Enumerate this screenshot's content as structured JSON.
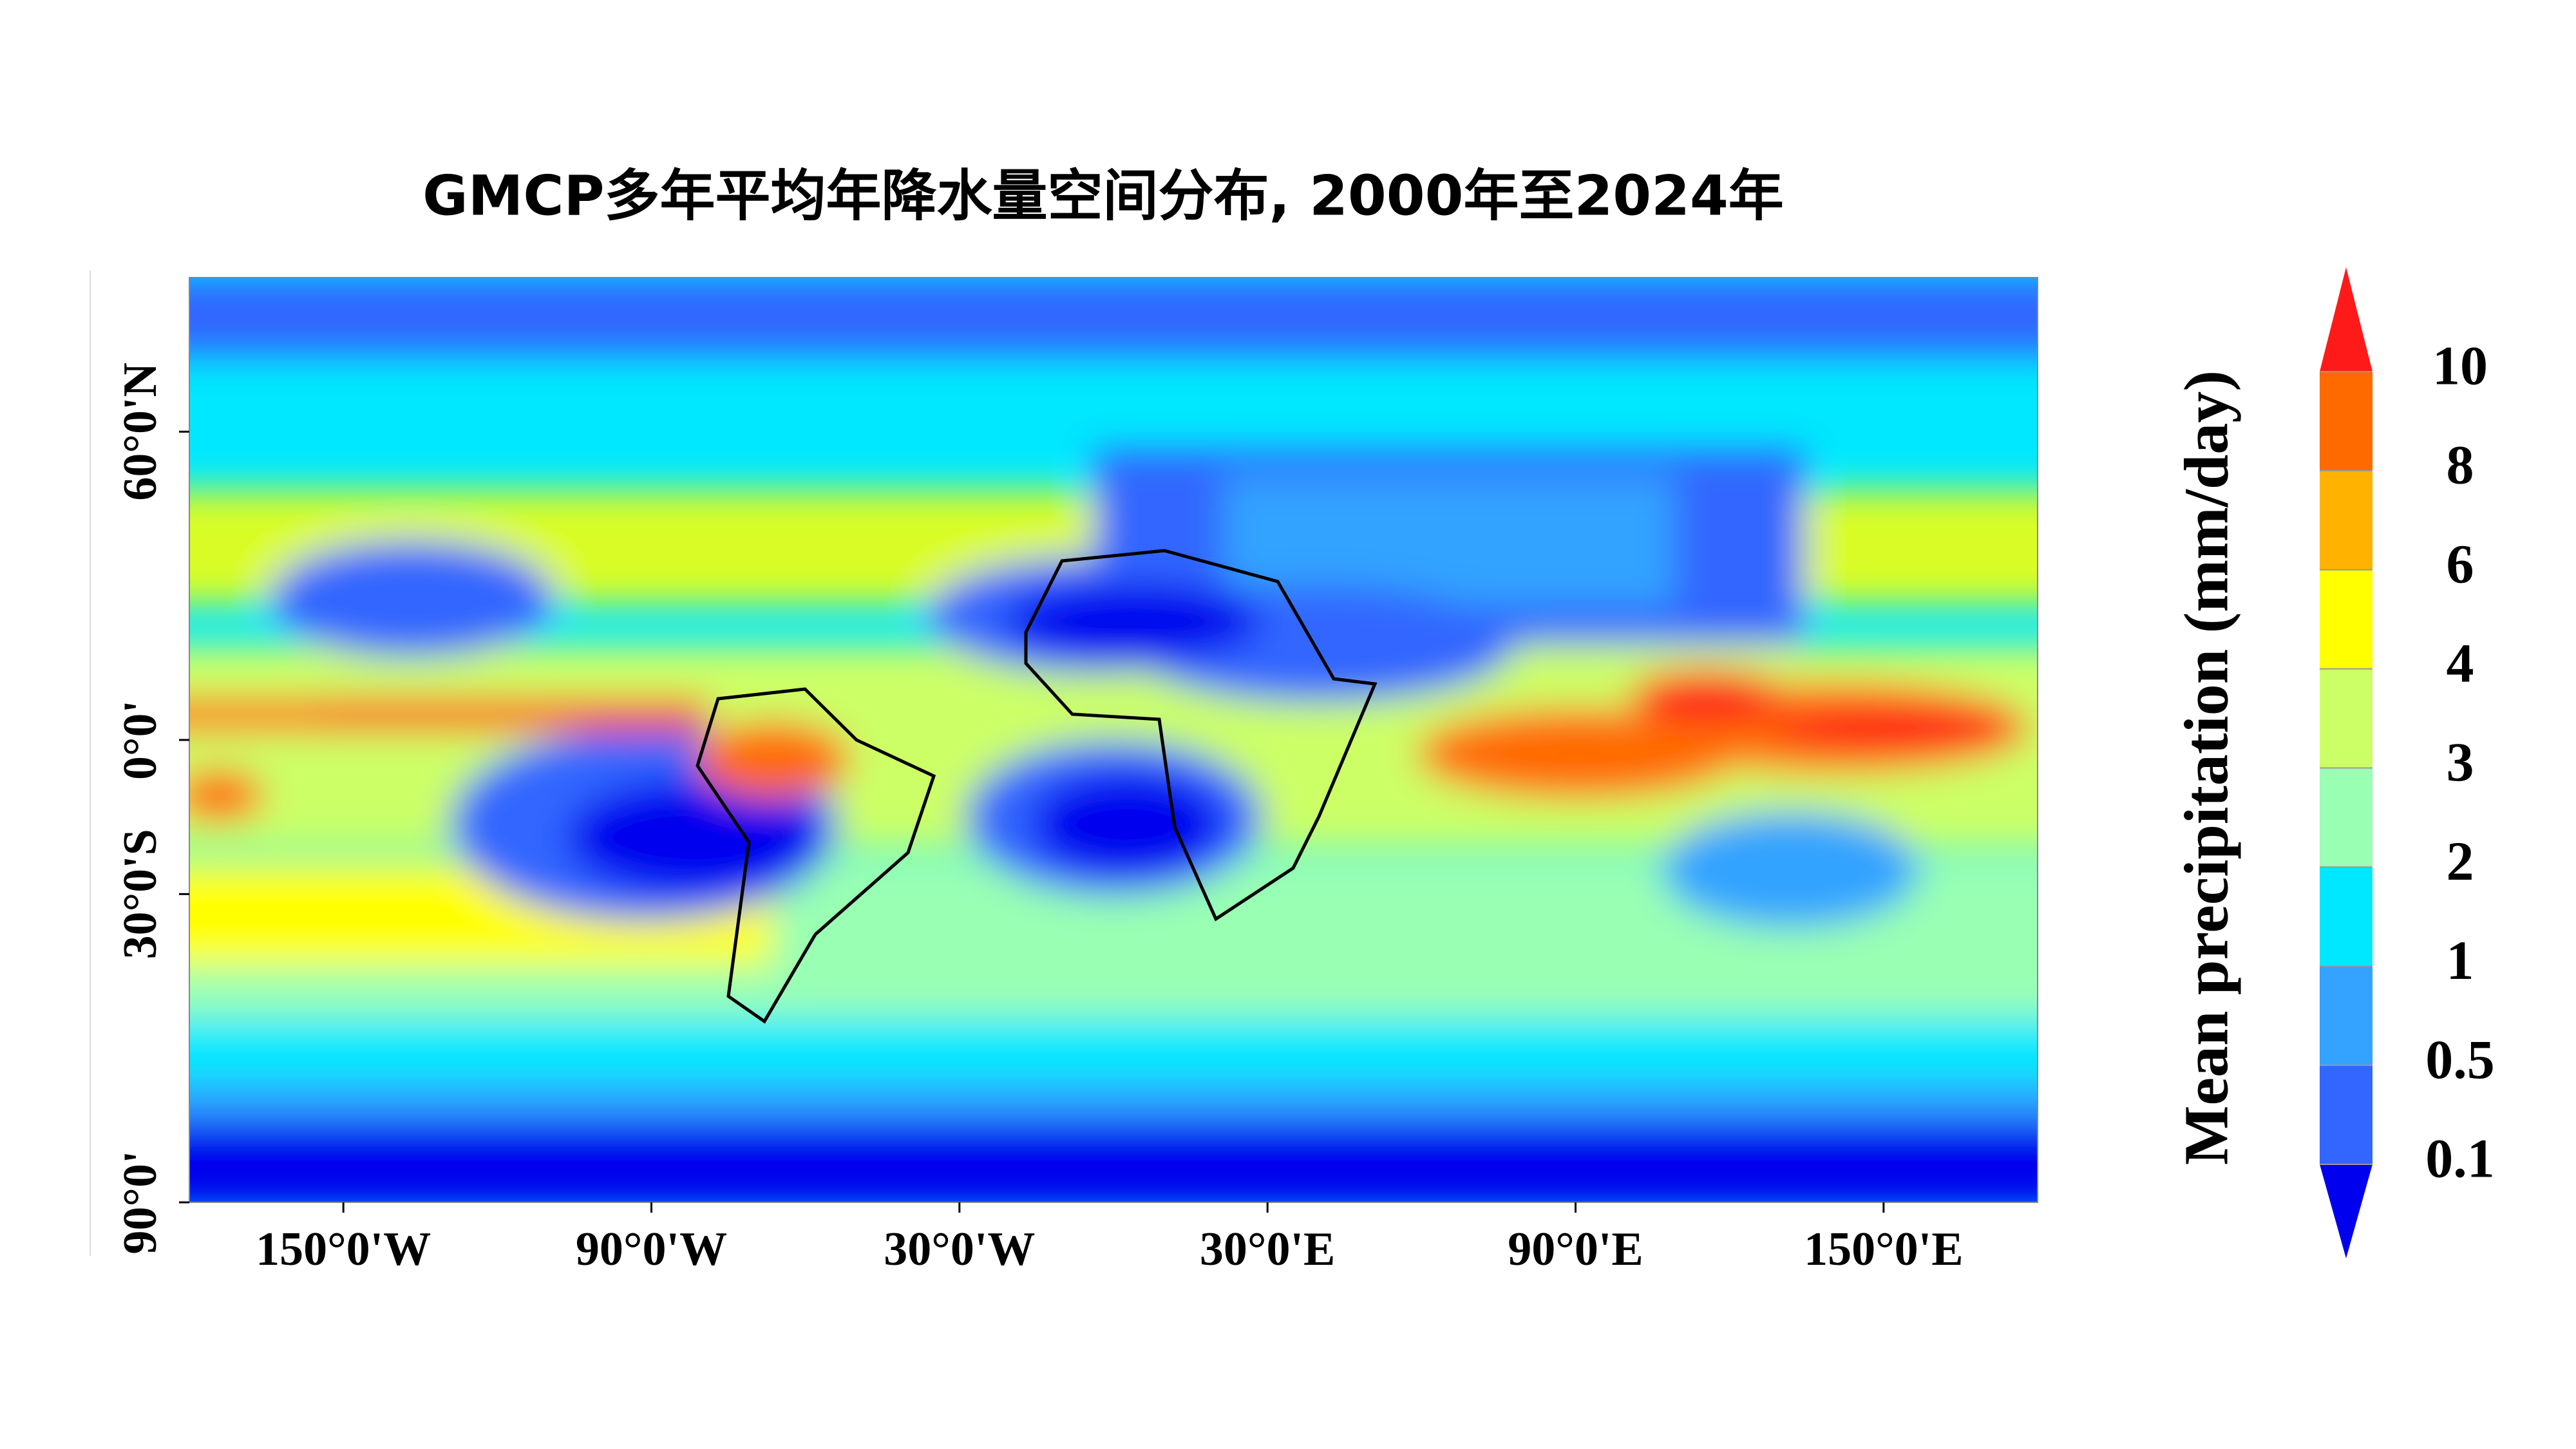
{
  "title": "GMCP多年平均年降水量空间分布, 2000年至2024年",
  "map": {
    "xlim": [
      -180,
      180
    ],
    "ylim": [
      -90,
      90
    ],
    "xticks": [
      {
        "value": -150,
        "label": "150°0'W"
      },
      {
        "value": -90,
        "label": "90°0'W"
      },
      {
        "value": -30,
        "label": "30°0'W"
      },
      {
        "value": 30,
        "label": "30°0'E"
      },
      {
        "value": 90,
        "label": "90°0'E"
      },
      {
        "value": 150,
        "label": "150°0'E"
      }
    ],
    "yticks": [
      {
        "value": 60,
        "label": "60°0'N"
      },
      {
        "value": 0,
        "label": "0°0'"
      },
      {
        "value": -30,
        "label": "30°0'S"
      },
      {
        "value": -90,
        "label": "90°0'"
      }
    ]
  },
  "colorbar": {
    "label": "Mean precipitation (mm/day)",
    "ticks": [
      0.1,
      0.5,
      1,
      2,
      3,
      4,
      6,
      8,
      10
    ],
    "colors": [
      "#0000ee",
      "#3366ff",
      "#33a3ff",
      "#00e8ff",
      "#99ffb3",
      "#ccff66",
      "#ffff00",
      "#ffb300",
      "#ff6a00",
      "#ff1a1a"
    ]
  }
}
